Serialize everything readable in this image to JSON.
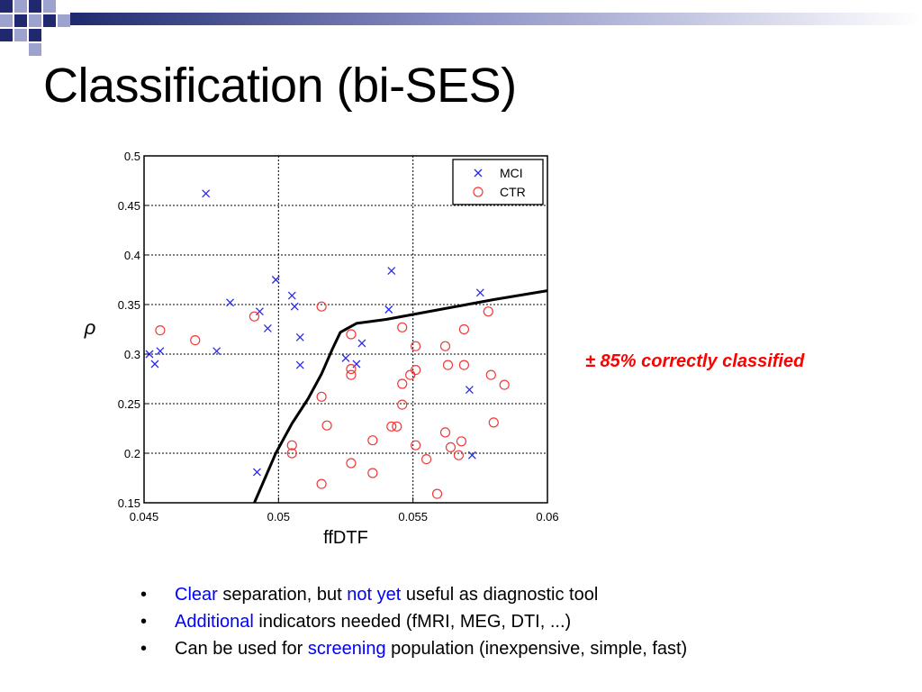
{
  "slide": {
    "title": "Classification (bi-SES)",
    "annotation": "±  85% correctly classified"
  },
  "bullets": [
    {
      "highlight": "Clear",
      "text1": " separation, but ",
      "highlight2": "not yet",
      "text2": " useful as diagnostic tool"
    },
    {
      "highlight": "Additional",
      "text1": " indicators needed (fMRI, MEG, DTI, ...)"
    },
    {
      "pre": "Can be used for ",
      "highlight": "screening",
      "text1": " population (inexpensive, simple, fast)"
    }
  ],
  "colors": {
    "accent_red": "#ff0000",
    "highlight_blue": "#0000ff",
    "deco_navy": "#1f2a6e",
    "deco_lavender": "#9ea2cf",
    "mci": "#2a2ae8",
    "ctr": "#f03a3a"
  },
  "chart_data": {
    "type": "scatter",
    "xlabel": "ffDTF",
    "ylabel": "ρ",
    "xlim": [
      0.045,
      0.06
    ],
    "ylim": [
      0.15,
      0.5
    ],
    "xticks": [
      "0.045",
      "0.05",
      "0.055",
      "0.06"
    ],
    "yticks": [
      "0.15",
      "0.2",
      "0.25",
      "0.3",
      "0.35",
      "0.4",
      "0.45",
      "0.5"
    ],
    "grid": "dotted",
    "legend_position": "top-right",
    "series": [
      {
        "name": "MCI",
        "marker": "x",
        "color": "#2a2ae8",
        "points": [
          [
            0.0473,
            0.462
          ],
          [
            0.0482,
            0.352
          ],
          [
            0.0477,
            0.303
          ],
          [
            0.0452,
            0.3
          ],
          [
            0.0456,
            0.303
          ],
          [
            0.0454,
            0.29
          ],
          [
            0.0493,
            0.343
          ],
          [
            0.0496,
            0.326
          ],
          [
            0.0499,
            0.375
          ],
          [
            0.0505,
            0.359
          ],
          [
            0.0506,
            0.348
          ],
          [
            0.0508,
            0.317
          ],
          [
            0.0508,
            0.289
          ],
          [
            0.0492,
            0.181
          ],
          [
            0.0525,
            0.296
          ],
          [
            0.0529,
            0.29
          ],
          [
            0.0531,
            0.311
          ],
          [
            0.0541,
            0.345
          ],
          [
            0.0542,
            0.384
          ],
          [
            0.0575,
            0.362
          ],
          [
            0.0571,
            0.264
          ],
          [
            0.0572,
            0.198
          ]
        ]
      },
      {
        "name": "CTR",
        "marker": "o",
        "color": "#f03a3a",
        "points": [
          [
            0.0456,
            0.324
          ],
          [
            0.0469,
            0.314
          ],
          [
            0.0491,
            0.338
          ],
          [
            0.0516,
            0.348
          ],
          [
            0.0505,
            0.208
          ],
          [
            0.0505,
            0.2
          ],
          [
            0.0516,
            0.257
          ],
          [
            0.0518,
            0.228
          ],
          [
            0.0516,
            0.169
          ],
          [
            0.0527,
            0.32
          ],
          [
            0.0527,
            0.285
          ],
          [
            0.0527,
            0.279
          ],
          [
            0.0527,
            0.19
          ],
          [
            0.0535,
            0.213
          ],
          [
            0.0535,
            0.18
          ],
          [
            0.0542,
            0.227
          ],
          [
            0.0544,
            0.227
          ],
          [
            0.0546,
            0.327
          ],
          [
            0.0546,
            0.27
          ],
          [
            0.0546,
            0.249
          ],
          [
            0.0549,
            0.279
          ],
          [
            0.0551,
            0.308
          ],
          [
            0.0551,
            0.284
          ],
          [
            0.0551,
            0.208
          ],
          [
            0.0555,
            0.194
          ],
          [
            0.0559,
            0.159
          ],
          [
            0.0562,
            0.308
          ],
          [
            0.0562,
            0.221
          ],
          [
            0.0563,
            0.289
          ],
          [
            0.0564,
            0.206
          ],
          [
            0.0567,
            0.198
          ],
          [
            0.0568,
            0.212
          ],
          [
            0.0569,
            0.325
          ],
          [
            0.0569,
            0.289
          ],
          [
            0.0578,
            0.343
          ],
          [
            0.0579,
            0.279
          ],
          [
            0.058,
            0.231
          ],
          [
            0.0584,
            0.269
          ]
        ]
      }
    ],
    "decision_boundary": [
      [
        0.0491,
        0.15
      ],
      [
        0.0495,
        0.175
      ],
      [
        0.0499,
        0.2
      ],
      [
        0.0505,
        0.23
      ],
      [
        0.0511,
        0.255
      ],
      [
        0.0516,
        0.28
      ],
      [
        0.052,
        0.305
      ],
      [
        0.0523,
        0.322
      ],
      [
        0.0529,
        0.331
      ],
      [
        0.054,
        0.335
      ],
      [
        0.056,
        0.345
      ],
      [
        0.058,
        0.355
      ],
      [
        0.06,
        0.364
      ]
    ]
  }
}
